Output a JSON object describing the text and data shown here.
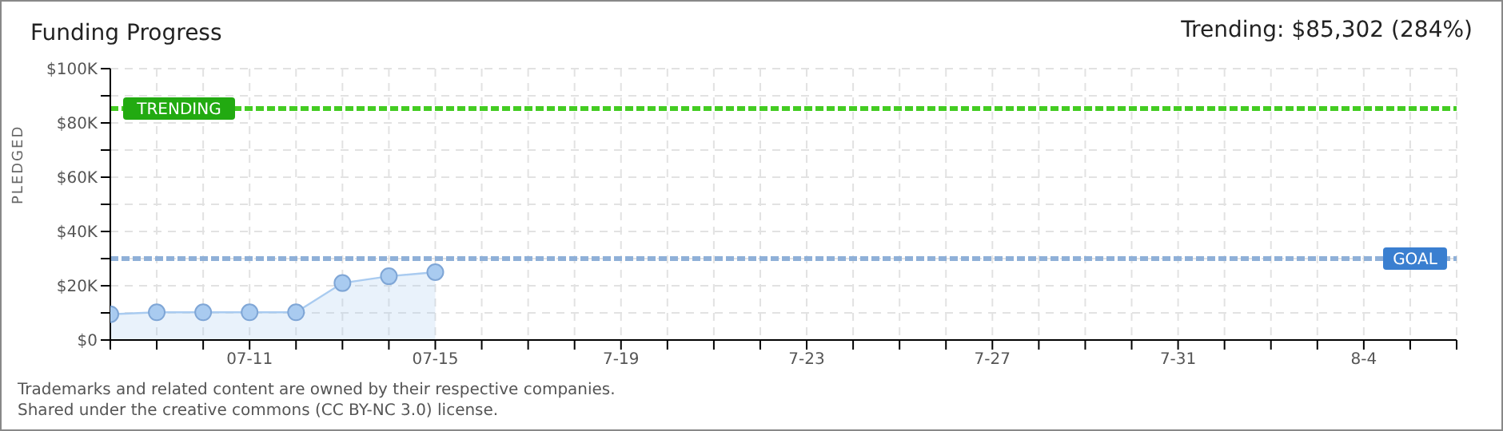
{
  "chart_data": {
    "type": "area",
    "title": "Funding Progress",
    "subtitle": "Trending: $85,302 (284%)",
    "ylabel": "PLEDGED",
    "x": [
      "--07-08",
      "--07-09",
      "--07-10",
      "--07-11",
      "--07-12",
      "--07-13",
      "--07-14",
      "--07-15"
    ],
    "series": [
      {
        "color": "#a9cbf0",
        "values": [
          9500,
          10200,
          10200,
          10200,
          10200,
          21000,
          23500,
          25000
        ]
      }
    ],
    "xlim": [
      "--07-08",
      "--08-06"
    ],
    "xticks": [
      {
        "value": "--07-08",
        "label": null
      },
      {
        "value": "--07-09",
        "label": null
      },
      {
        "value": "--07-10",
        "label": null
      },
      {
        "value": "--07-11",
        "label": "07-11"
      },
      {
        "value": "--07-12",
        "label": null
      },
      {
        "value": "--07-13",
        "label": null
      },
      {
        "value": "--07-14",
        "label": null
      },
      {
        "value": "--07-15",
        "label": "07-15"
      },
      {
        "value": "--07-16",
        "label": null
      },
      {
        "value": "--07-17",
        "label": null
      },
      {
        "value": "--07-18",
        "label": null
      },
      {
        "value": "--07-19",
        "label": "7-19"
      },
      {
        "value": "--07-20",
        "label": null
      },
      {
        "value": "--07-21",
        "label": null
      },
      {
        "value": "--07-22",
        "label": null
      },
      {
        "value": "--07-23",
        "label": "7-23"
      },
      {
        "value": "--07-24",
        "label": null
      },
      {
        "value": "--07-25",
        "label": null
      },
      {
        "value": "--07-26",
        "label": null
      },
      {
        "value": "--07-27",
        "label": "7-27"
      },
      {
        "value": "--07-28",
        "label": null
      },
      {
        "value": "--07-29",
        "label": null
      },
      {
        "value": "--07-30",
        "label": null
      },
      {
        "value": "--07-31",
        "label": "7-31"
      },
      {
        "value": "--08-01",
        "label": null
      },
      {
        "value": "--08-02",
        "label": null
      },
      {
        "value": "--08-03",
        "label": null
      },
      {
        "value": "--08-04",
        "label": "8-4"
      },
      {
        "value": "--08-05",
        "label": null
      },
      {
        "value": "--08-06",
        "label": null
      }
    ],
    "ylim": [
      0,
      100000
    ],
    "yticks": [
      {
        "value": 0,
        "label": "$0"
      },
      {
        "value": 10000,
        "label": null
      },
      {
        "value": 20000,
        "label": "$20K"
      },
      {
        "value": 30000,
        "label": null
      },
      {
        "value": 40000,
        "label": "$40K"
      },
      {
        "value": 50000,
        "label": null
      },
      {
        "value": 60000,
        "label": "$60K"
      },
      {
        "value": 70000,
        "label": null
      },
      {
        "value": 80000,
        "label": "$80K"
      },
      {
        "value": 90000,
        "label": null
      },
      {
        "value": 100000,
        "label": "$100K"
      }
    ],
    "ref_lines": [
      {
        "axis": "y",
        "value": 85302,
        "label": "TRENDING",
        "color": "#44cc22",
        "line_style": "dashed"
      },
      {
        "axis": "y",
        "value": 30000,
        "label": "GOAL",
        "color": "#8fb0d8",
        "line_style": "dashed"
      }
    ],
    "grid": true,
    "marker": "circle",
    "legend": false,
    "annotations": [
      "Trademarks and related content are owned by their respective companies.",
      "Shared under the creative commons (CC BY-NC 3.0) license."
    ]
  }
}
